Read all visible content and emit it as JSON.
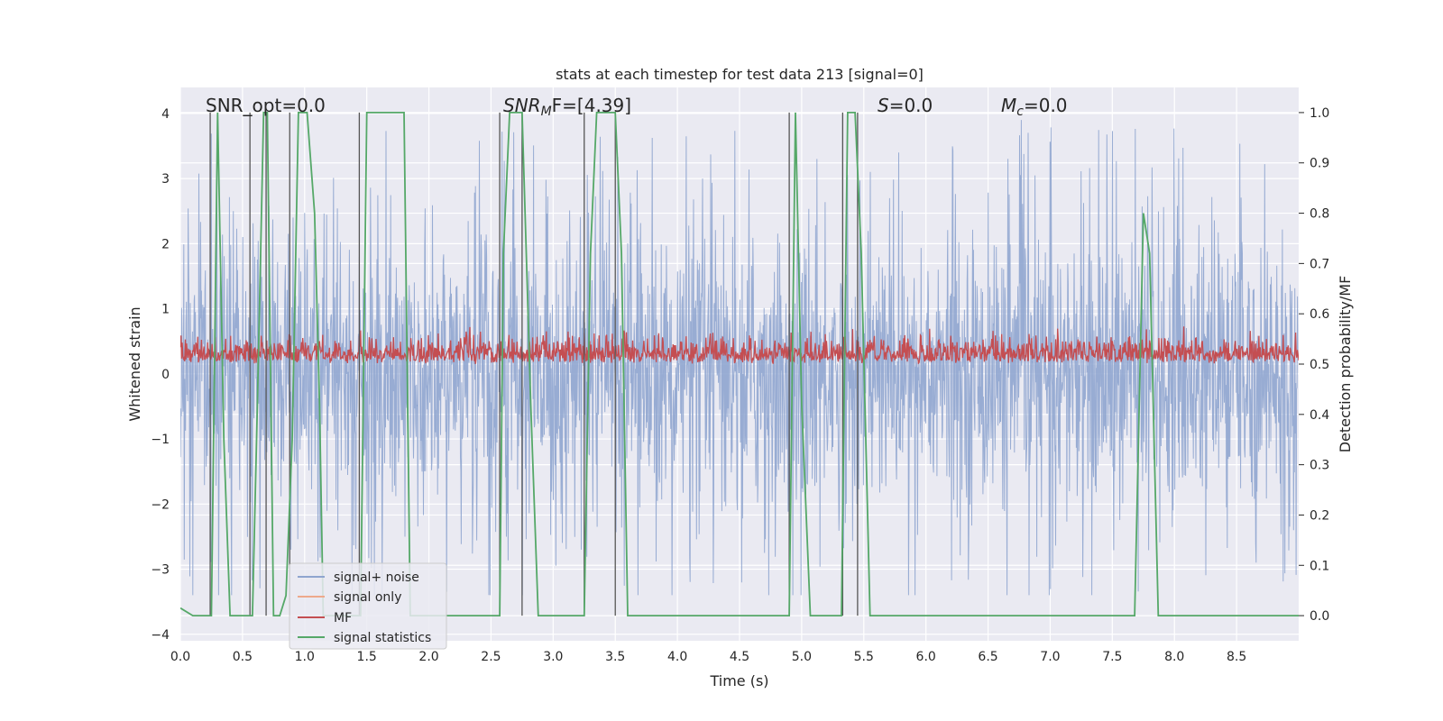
{
  "chart_data": {
    "type": "line",
    "title": "stats at each timestep for test data 213 [signal=0]",
    "xlabel": "Time (s)",
    "ylabel": "Whitened strain",
    "y2label": "Detection probability/MF",
    "xlim": [
      0.0,
      9.0
    ],
    "ylim": [
      -4.1,
      4.4
    ],
    "y2lim": [
      -0.05,
      1.05
    ],
    "xticks": [
      0.0,
      0.5,
      1.0,
      1.5,
      2.0,
      2.5,
      3.0,
      3.5,
      4.0,
      4.5,
      5.0,
      5.5,
      6.0,
      6.5,
      7.0,
      7.5,
      8.0,
      8.5
    ],
    "xtick_labels": [
      "0.0",
      "0.5",
      "1.0",
      "1.5",
      "2.0",
      "2.5",
      "3.0",
      "3.5",
      "4.0",
      "4.5",
      "5.0",
      "5.5",
      "6.0",
      "6.5",
      "7.0",
      "7.5",
      "8.0",
      "8.5"
    ],
    "yticks": [
      -4,
      -3,
      -2,
      -1,
      0,
      1,
      2,
      3,
      4
    ],
    "ytick_labels": [
      "−4",
      "−3",
      "−2",
      "−1",
      "0",
      "1",
      "2",
      "3",
      "4"
    ],
    "y2ticks": [
      0.0,
      0.1,
      0.2,
      0.3,
      0.4,
      0.5,
      0.6,
      0.7,
      0.8,
      0.9,
      1.0
    ],
    "y2tick_labels": [
      "0.0",
      "0.1",
      "0.2",
      "0.3",
      "0.4",
      "0.5",
      "0.6",
      "0.7",
      "0.8",
      "0.9",
      "1.0"
    ],
    "grid": true,
    "legend_position": "lower-left",
    "annotations": {
      "snr_opt": "SNR_opt=0.0",
      "snr_mf_main": "SNR",
      "snr_mf_sub": "M",
      "snr_mf_rest": "F=[4.39]",
      "s_main": "S",
      "s_rest": "=0.0",
      "mc_main": "M",
      "mc_sub": "c",
      "mc_rest": "=0.0"
    },
    "series": [
      {
        "name": "signal+ noise",
        "color": "#8fa5cf",
        "axis": "left",
        "style": "noise",
        "envelope": [
          -2.0,
          2.0
        ],
        "peak_extent": [
          -3.4,
          3.9
        ]
      },
      {
        "name": "signal only",
        "color": "#eea98b",
        "axis": "left",
        "values": []
      },
      {
        "name": "MF",
        "color": "#c44e52",
        "axis": "right",
        "style": "noise",
        "range": [
          0.5,
          0.59
        ]
      },
      {
        "name": "signal statistics",
        "color": "#55a868",
        "axis": "right",
        "x": [
          0.0,
          0.1,
          0.25,
          0.3,
          0.35,
          0.4,
          0.5,
          0.58,
          0.62,
          0.67,
          0.7,
          0.75,
          0.8,
          0.85,
          0.9,
          0.95,
          0.98,
          1.02,
          1.08,
          1.12,
          1.15,
          1.45,
          1.5,
          1.8,
          1.85,
          2.57,
          2.6,
          2.65,
          2.75,
          2.82,
          2.88,
          3.25,
          3.3,
          3.35,
          3.5,
          3.55,
          3.6,
          4.9,
          4.95,
          5.0,
          5.07,
          5.32,
          5.37,
          5.43,
          5.48,
          5.55,
          7.68,
          7.75,
          7.8,
          7.87,
          9.0
        ],
        "y": [
          0.015,
          0.0,
          0.0,
          1.0,
          0.35,
          0.0,
          0.0,
          0.0,
          0.42,
          1.0,
          1.0,
          0.0,
          0.0,
          0.04,
          0.35,
          1.0,
          1.0,
          1.0,
          0.8,
          0.42,
          0.0,
          0.0,
          1.0,
          1.0,
          0.0,
          0.0,
          0.72,
          1.0,
          1.0,
          0.42,
          0.0,
          0.0,
          0.72,
          1.0,
          1.0,
          0.72,
          0.0,
          0.0,
          1.0,
          0.42,
          0.0,
          0.0,
          1.0,
          1.0,
          0.72,
          0.0,
          0.0,
          0.8,
          0.72,
          0.0,
          0.0
        ]
      }
    ],
    "detection_lines": [
      0.24,
      0.56,
      0.69,
      0.88,
      1.44,
      2.57,
      2.75,
      3.25,
      3.5,
      4.9,
      5.33,
      5.45
    ]
  }
}
